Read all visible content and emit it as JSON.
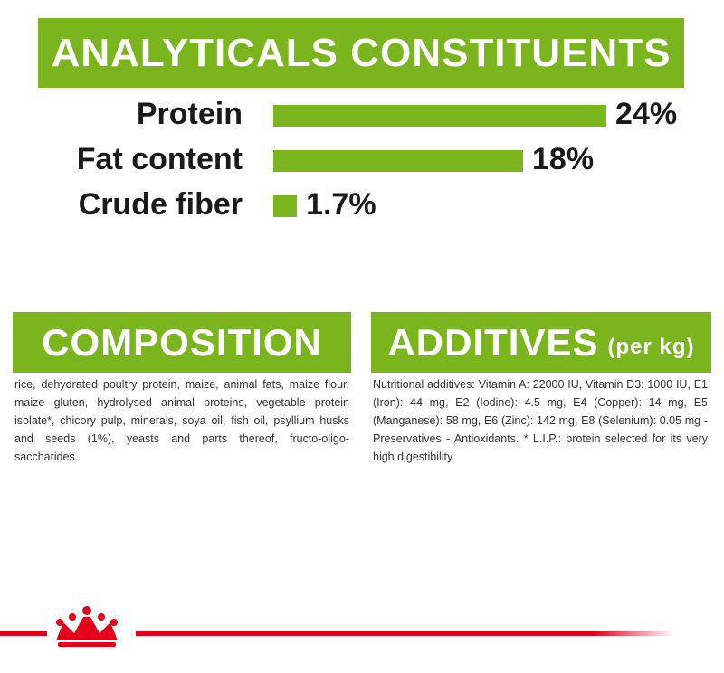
{
  "header": {
    "title": "ANALYTICALS CONSTITUENTS"
  },
  "chart_data": {
    "type": "bar",
    "orientation": "horizontal",
    "categories": [
      "Protein",
      "Fat content",
      "Crude fiber"
    ],
    "values": [
      24,
      18,
      1.7
    ],
    "value_labels": [
      "24%",
      "18%",
      "1.7%"
    ],
    "color": "#7ab51d"
  },
  "composition": {
    "title": "COMPOSITION",
    "text": "rice, dehydrated poultry protein, maize, animal fats, maize flour, maize gluten, hydrolysed animal proteins, vegetable protein isolate*, chicory pulp, minerals, soya oil, fish oil, psyllium husks and seeds (1%), yeasts and parts thereof, fructo-oligo-saccharides."
  },
  "additives": {
    "title": "ADDITIVES",
    "subtitle": "(per kg)",
    "text": "Nutritional additives: Vitamin A: 22000 IU, Vitamin D3: 1000 IU, E1 (Iron): 44 mg, E2 (Iodine): 4.5 mg, E4 (Copper): 14 mg, E5 (Manganese): 58 mg, E6 (Zinc): 142 mg, E8 (Selenium): 0.05 mg - Preservatives - Antioxidants. * L.I.P.: protein selected for its very high digestibility."
  }
}
